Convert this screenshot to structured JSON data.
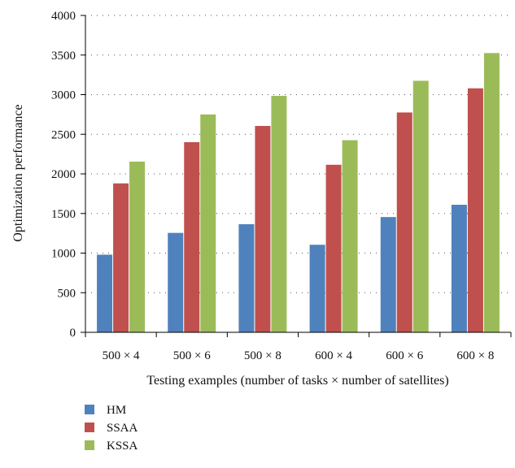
{
  "chart_data": {
    "type": "bar",
    "xlabel": "Testing examples (number of tasks × number of satellites)",
    "ylabel": "Optimization performance",
    "ylim": [
      0,
      4000
    ],
    "yticks": [
      0,
      500,
      1000,
      1500,
      2000,
      2500,
      3000,
      3500,
      4000
    ],
    "categories": [
      "500 × 4",
      "500 × 6",
      "500 × 8",
      "600 × 4",
      "600 × 6",
      "600 × 8"
    ],
    "grid": "horizontal dotted",
    "legend_position": "bottom-left",
    "series": [
      {
        "name": "HM",
        "color": "#4f81bd",
        "values": [
          980,
          1255,
          1365,
          1105,
          1455,
          1610
        ]
      },
      {
        "name": "SSAA",
        "color": "#c0504d",
        "values": [
          1880,
          2400,
          2605,
          2115,
          2775,
          3080
        ]
      },
      {
        "name": "KSSA",
        "color": "#9bbb59",
        "values": [
          2155,
          2750,
          2985,
          2425,
          3175,
          3525
        ]
      }
    ]
  }
}
